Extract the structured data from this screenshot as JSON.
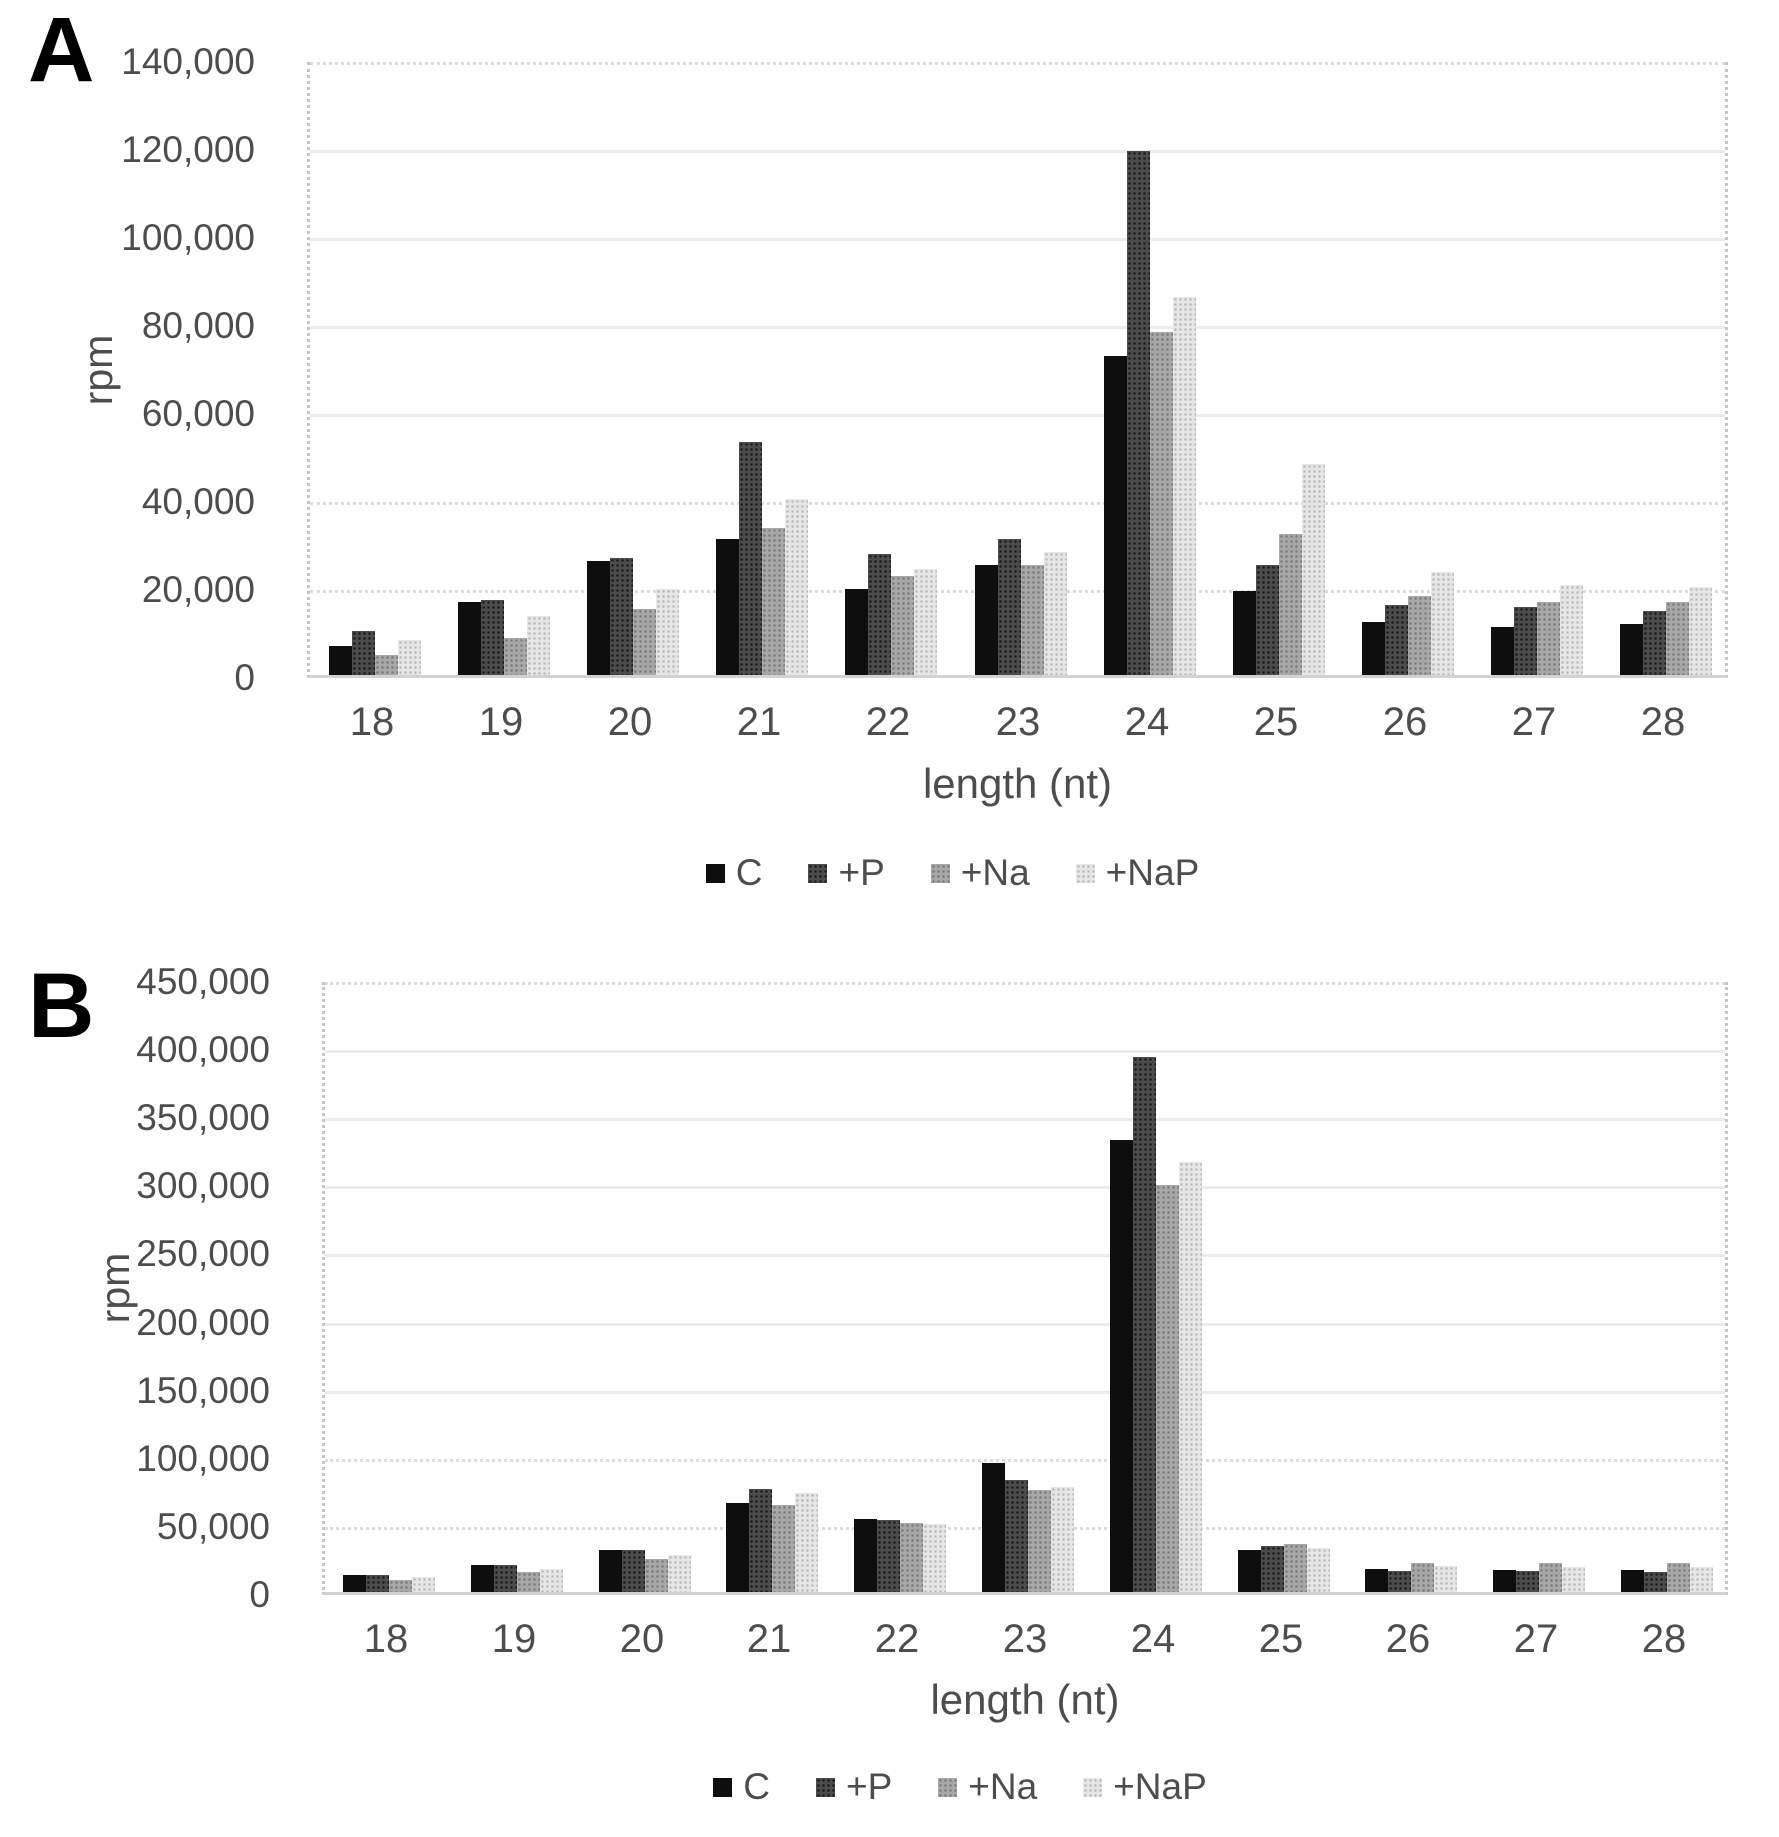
{
  "figure": {
    "background": "#ffffff",
    "text_color": "#4d4d4d",
    "series_colors": {
      "C": "#0e0e0e",
      "+P": "#4c4c4c",
      "+Na": "#a8a8a8",
      "+NaP": "#e6e6e6"
    },
    "legend_marker_icons": [
      "black-square-icon",
      "dark-dotted-square-icon",
      "gray-dotted-square-icon",
      "light-dotted-square-icon"
    ]
  },
  "chart_data": [
    {
      "panel": "A",
      "type": "bar",
      "xlabel": "length (nt)",
      "ylabel": "rpm",
      "ylim": [
        0,
        140000
      ],
      "ytick_step": 20000,
      "yticklabels": [
        "140,000",
        "120,000",
        "100,000",
        "80,000",
        "60,000",
        "40,000",
        "20,000",
        "0"
      ],
      "grid": true,
      "legend_position": "bottom",
      "categories": [
        "18",
        "19",
        "20",
        "21",
        "22",
        "23",
        "24",
        "25",
        "26",
        "27",
        "28"
      ],
      "series": [
        {
          "name": "C",
          "values": [
            6500,
            16500,
            26000,
            31000,
            19500,
            25000,
            72500,
            19000,
            12000,
            11000,
            11500
          ]
        },
        {
          "name": "+P",
          "values": [
            10000,
            17000,
            26500,
            53000,
            27500,
            31000,
            119000,
            25000,
            16000,
            15500,
            14500
          ]
        },
        {
          "name": "+Na",
          "values": [
            4500,
            8500,
            15000,
            33500,
            22500,
            25000,
            78000,
            32000,
            18000,
            16500,
            16500
          ]
        },
        {
          "name": "+NaP",
          "values": [
            8000,
            13500,
            19500,
            40000,
            24000,
            28000,
            86000,
            48000,
            23500,
            20500,
            20000
          ]
        }
      ]
    },
    {
      "panel": "B",
      "type": "bar",
      "xlabel": "length (nt)",
      "ylabel": "rpm",
      "ylim": [
        0,
        450000
      ],
      "ytick_step": 50000,
      "yticklabels": [
        "450,000",
        "400,000",
        "350,000",
        "300,000",
        "250,000",
        "200,000",
        "150,000",
        "100,000",
        "50,000",
        "0"
      ],
      "grid": true,
      "legend_position": "bottom",
      "categories": [
        "18",
        "19",
        "20",
        "21",
        "22",
        "23",
        "24",
        "25",
        "26",
        "27",
        "28"
      ],
      "series": [
        {
          "name": "C",
          "values": [
            12500,
            20000,
            30500,
            65000,
            53500,
            94500,
            332000,
            31000,
            17000,
            16500,
            16500
          ]
        },
        {
          "name": "+P",
          "values": [
            12500,
            19500,
            30500,
            75500,
            53000,
            82000,
            393000,
            34000,
            15500,
            15500,
            14500
          ]
        },
        {
          "name": "+Na",
          "values": [
            8500,
            14500,
            24500,
            64000,
            51000,
            75000,
            299000,
            35500,
            21000,
            21000,
            21500
          ]
        },
        {
          "name": "+NaP",
          "values": [
            11000,
            17000,
            27000,
            73000,
            50000,
            77000,
            316000,
            32500,
            19000,
            18500,
            18000
          ]
        }
      ]
    }
  ]
}
